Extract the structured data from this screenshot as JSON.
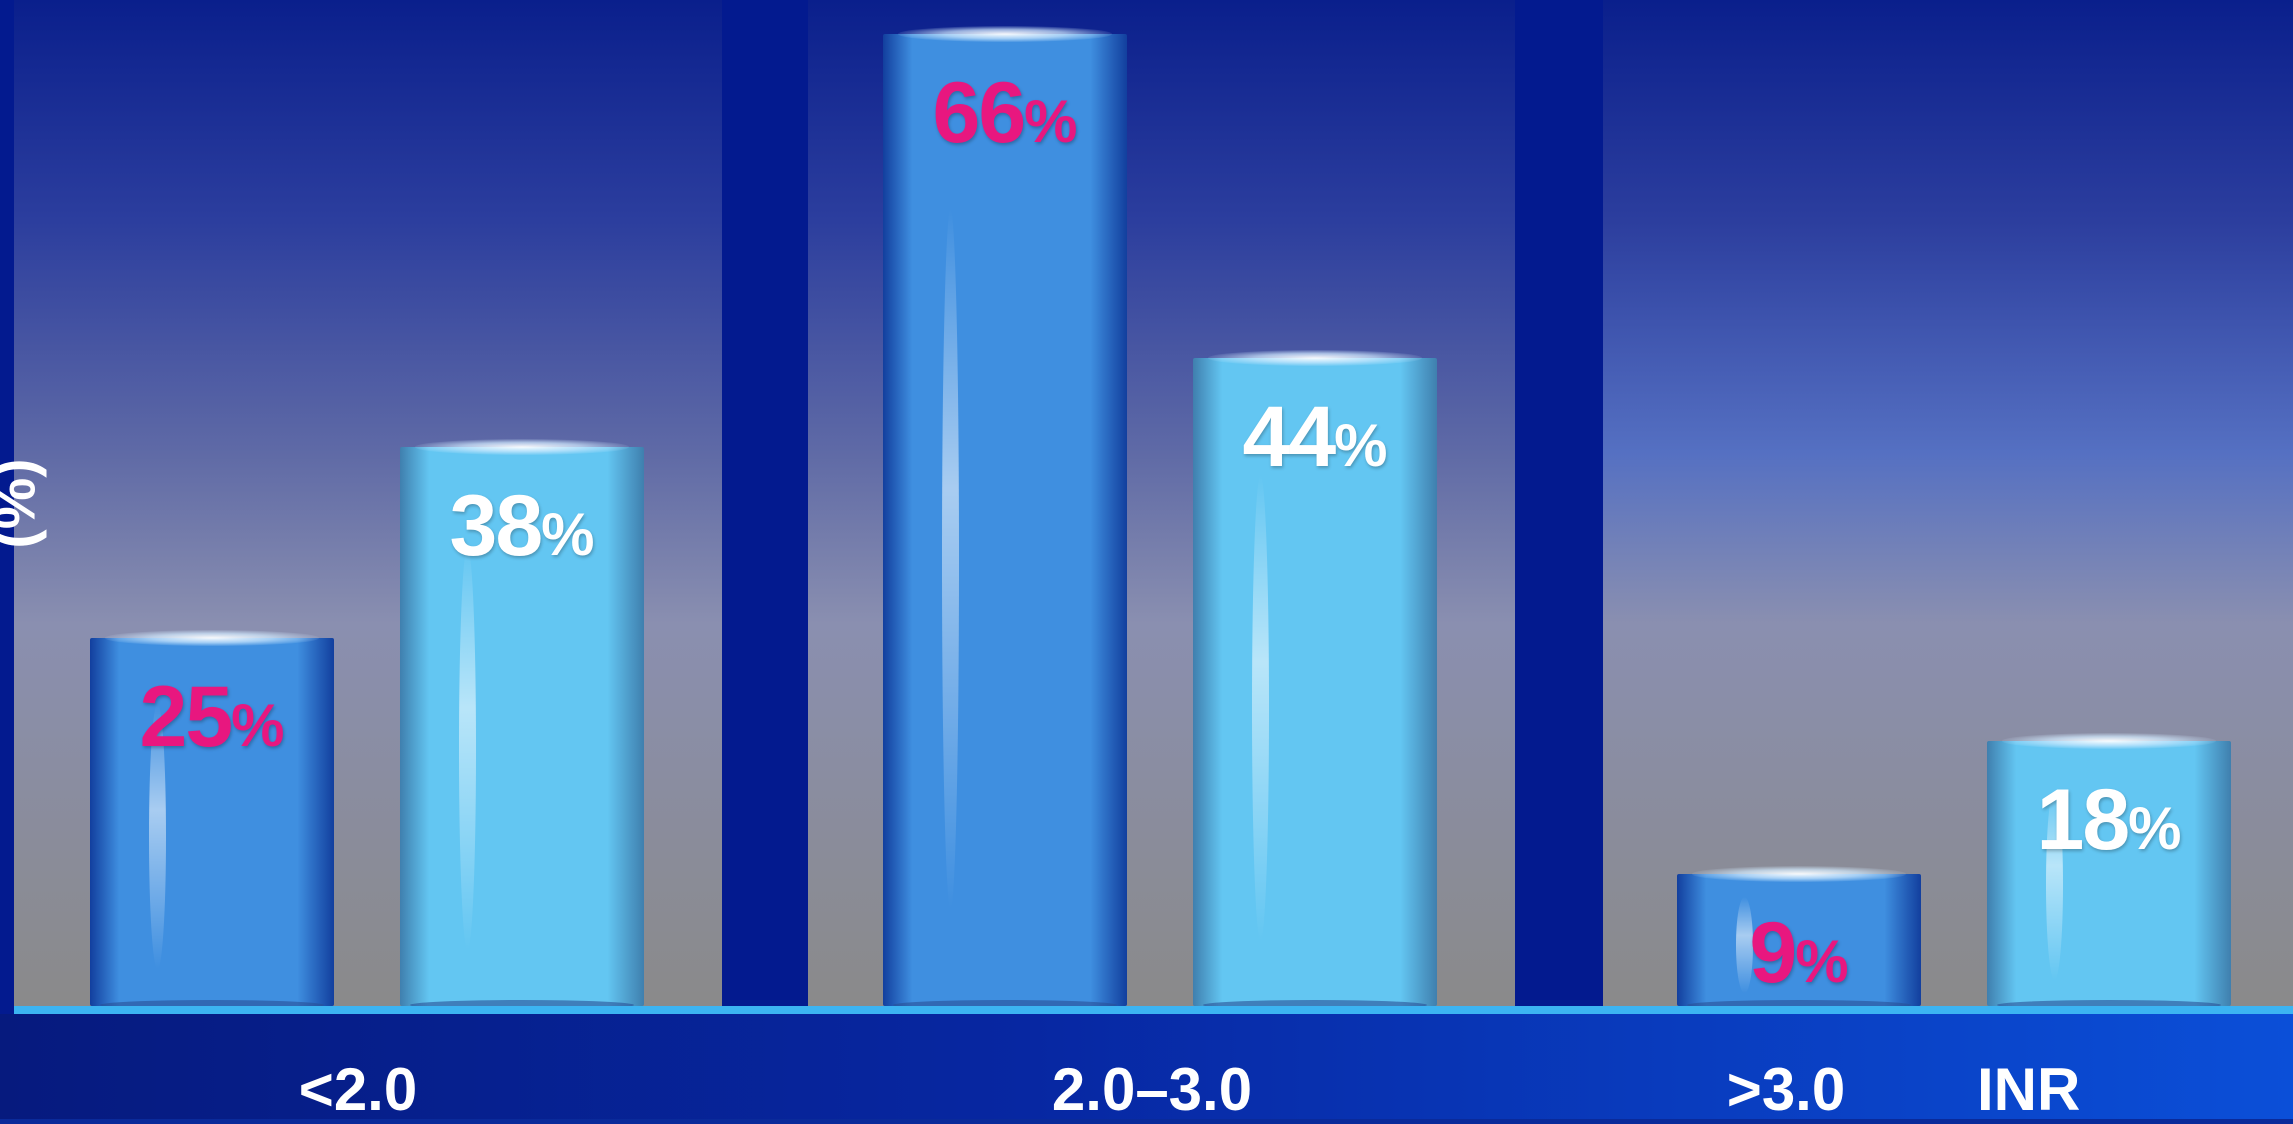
{
  "chart_data": {
    "type": "bar",
    "title": "",
    "xlabel": "INR",
    "ylabel": "(%)",
    "categories": [
      "<2.0",
      "2.0–3.0",
      ">3.0"
    ],
    "series": [
      {
        "values": [
          25,
          66,
          9
        ],
        "label_color": "#e8177f"
      },
      {
        "values": [
          38,
          44,
          18
        ],
        "label_color": "#ffffff"
      }
    ],
    "value_suffix": "%",
    "ylim": [
      0,
      70
    ],
    "grid": false,
    "legend": "none"
  },
  "colors": {
    "bar_series_1": "#3f8fe0",
    "bar_series_2": "#63c6f2",
    "axis_line": "#3cb4f2",
    "panel_top": "#0a1f8c",
    "panel_bottom": "#8a8a8a"
  }
}
